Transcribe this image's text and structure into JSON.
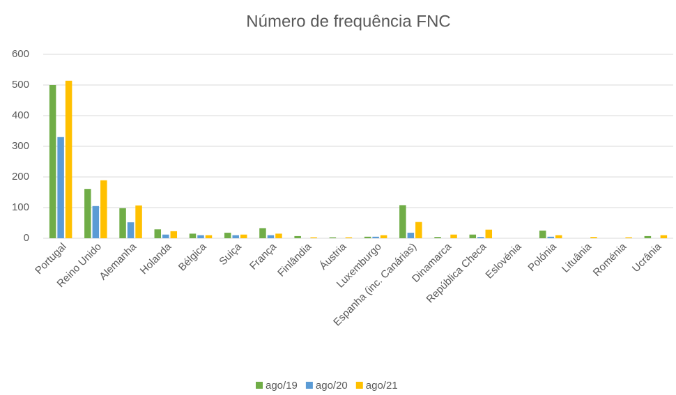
{
  "chart_data": {
    "type": "bar",
    "title": "Número de frequência FNC",
    "categories": [
      "Portugal",
      "Reino Unido",
      "Alemanha",
      "Holanda",
      "Bélgica",
      "Suiça",
      "França",
      "Finlândia",
      "Áustria",
      "Luxemburgo",
      "Espanha (inc. Canárias)",
      "Dinamarca",
      "República Checa",
      "Eslovénia",
      "Polónia",
      "Lituânia",
      "Roménia",
      "Ucrânia"
    ],
    "series": [
      {
        "name": "ago/19",
        "color": "#70ad47",
        "values": [
          500,
          161,
          98,
          29,
          15,
          18,
          33,
          7,
          3,
          5,
          108,
          4,
          12,
          0,
          25,
          0,
          0,
          7
        ]
      },
      {
        "name": "ago/20",
        "color": "#5b9bd5",
        "values": [
          330,
          105,
          52,
          12,
          10,
          10,
          10,
          0,
          0,
          5,
          18,
          0,
          4,
          0,
          5,
          0,
          0,
          0
        ]
      },
      {
        "name": "ago/21",
        "color": "#ffc000",
        "values": [
          514,
          189,
          107,
          23,
          10,
          12,
          15,
          3,
          3,
          10,
          53,
          12,
          28,
          0,
          10,
          4,
          3,
          10
        ]
      }
    ],
    "ylim": [
      0,
      600
    ],
    "yticks": [
      0,
      100,
      200,
      300,
      400,
      500,
      600
    ],
    "grid": true,
    "legend": "bottom"
  }
}
